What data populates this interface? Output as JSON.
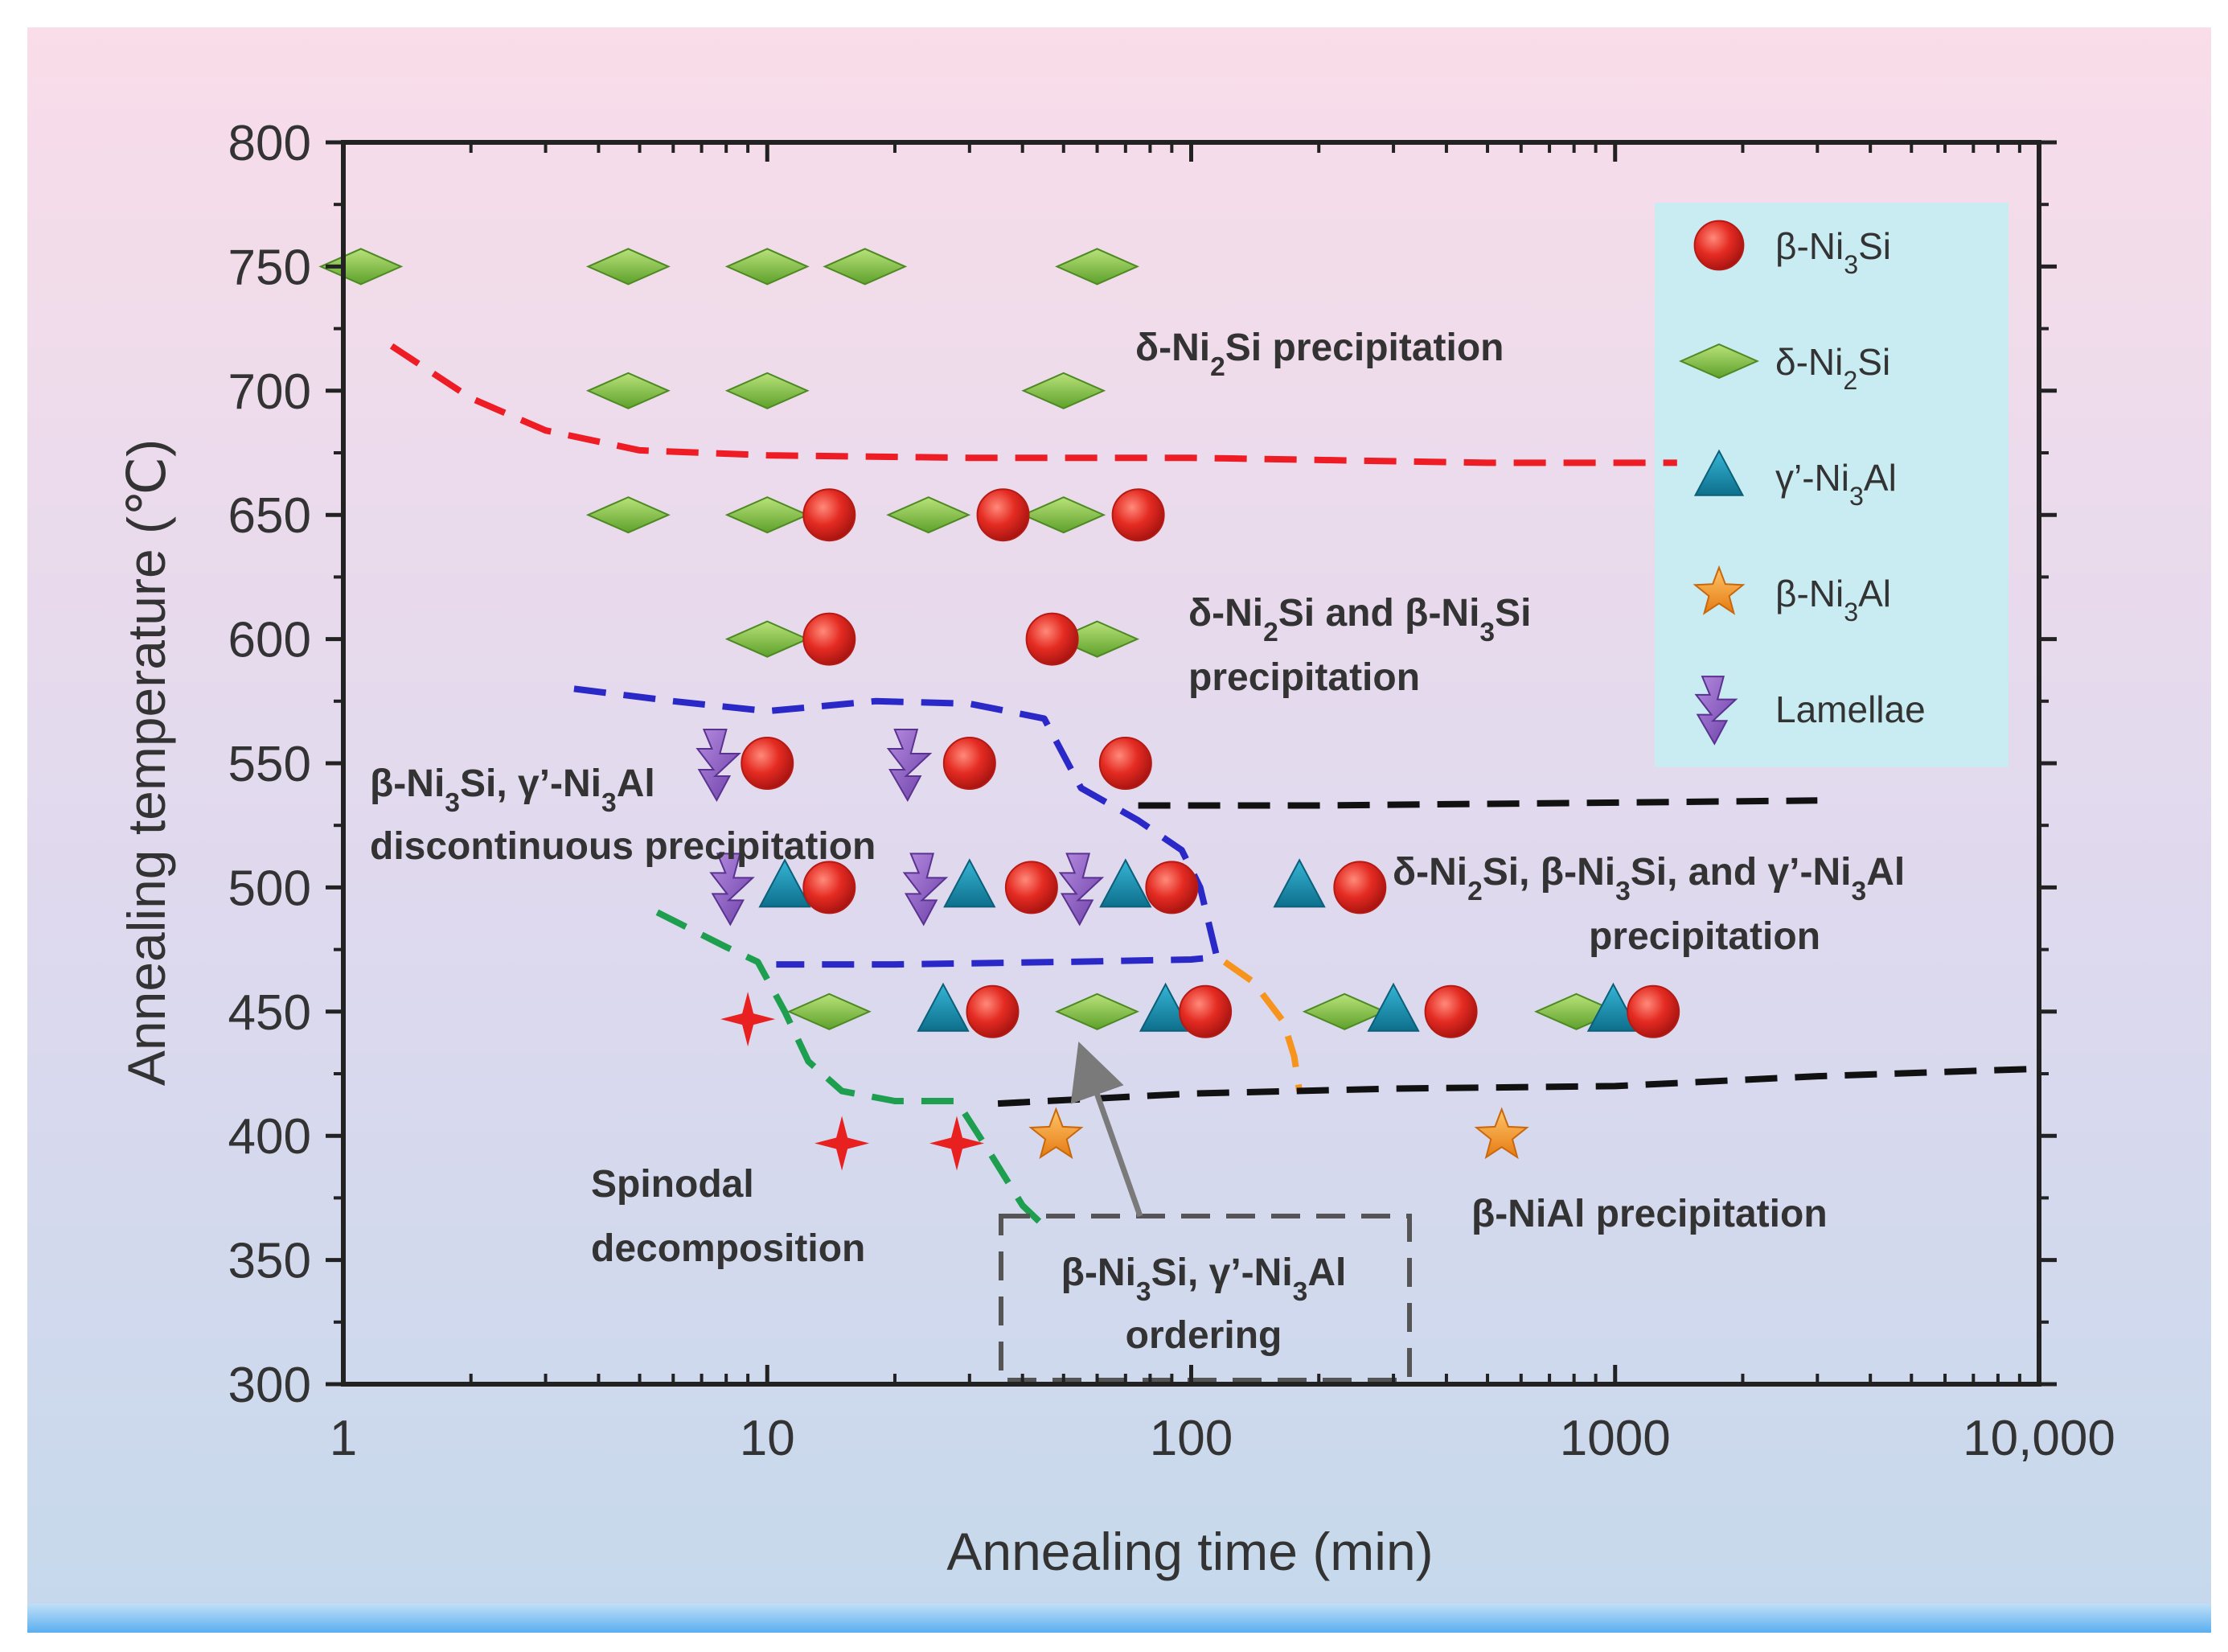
{
  "chart_data": {
    "type": "scatter",
    "title": "",
    "xlabel": "Annealing time (min)",
    "ylabel": "Annealing temperature (℃)",
    "xscale": "log",
    "xlim": [
      1,
      10000
    ],
    "ylim": [
      300,
      800
    ],
    "grid": false,
    "legend_position": "top-right",
    "x_ticks": [
      {
        "value": 1,
        "label": "1"
      },
      {
        "value": 10,
        "label": "10"
      },
      {
        "value": 100,
        "label": "100"
      },
      {
        "value": 1000,
        "label": "1000"
      },
      {
        "value": 10000,
        "label": "10,000"
      }
    ],
    "y_ticks": [
      {
        "value": 800,
        "label": "800"
      },
      {
        "value": 750,
        "label": "750"
      },
      {
        "value": 700,
        "label": "700"
      },
      {
        "value": 650,
        "label": "650"
      },
      {
        "value": 600,
        "label": "600"
      },
      {
        "value": 550,
        "label": "550"
      },
      {
        "value": 500,
        "label": "500"
      },
      {
        "value": 450,
        "label": "450"
      },
      {
        "value": 400,
        "label": "400"
      },
      {
        "value": 350,
        "label": "350"
      },
      {
        "value": 300,
        "label": "300"
      }
    ],
    "legend": [
      {
        "key": "circle",
        "label": "β-Ni₃Si"
      },
      {
        "key": "diamond",
        "label": "δ-Ni₂Si"
      },
      {
        "key": "triangle",
        "label": "γ’-Ni₃Al"
      },
      {
        "key": "star",
        "label": "β-Ni₃Al"
      },
      {
        "key": "lightning",
        "label": "Lamellae"
      }
    ],
    "series": [
      {
        "name": "δ-Ni₂Si",
        "marker": "diamond",
        "color": "#7cc242",
        "points": [
          [
            1.1,
            750
          ],
          [
            4.7,
            750
          ],
          [
            10,
            750
          ],
          [
            17,
            750
          ],
          [
            60,
            750
          ],
          [
            4.7,
            700
          ],
          [
            10,
            700
          ],
          [
            50,
            700
          ],
          [
            4.7,
            650
          ],
          [
            10,
            650
          ],
          [
            24,
            650
          ],
          [
            50,
            650
          ],
          [
            10,
            600
          ],
          [
            60,
            600
          ],
          [
            14,
            450
          ],
          [
            60,
            450
          ],
          [
            230,
            450
          ],
          [
            810,
            450
          ]
        ]
      },
      {
        "name": "β-Ni₃Si",
        "marker": "circle",
        "color": "#e02020",
        "points": [
          [
            14,
            650
          ],
          [
            36,
            650
          ],
          [
            75,
            650
          ],
          [
            14,
            600
          ],
          [
            47,
            600
          ],
          [
            10,
            550
          ],
          [
            30,
            550
          ],
          [
            70,
            550
          ],
          [
            14,
            500
          ],
          [
            42,
            500
          ],
          [
            90,
            500
          ],
          [
            250,
            500
          ],
          [
            34,
            450
          ],
          [
            108,
            450
          ],
          [
            410,
            450
          ],
          [
            1230,
            450
          ]
        ]
      },
      {
        "name": "γ’-Ni₃Al",
        "marker": "triangle",
        "color": "#1590b5",
        "points": [
          [
            11,
            500
          ],
          [
            30,
            500
          ],
          [
            70,
            500
          ],
          [
            180,
            500
          ],
          [
            26,
            450
          ],
          [
            87,
            450
          ],
          [
            300,
            450
          ],
          [
            990,
            450
          ]
        ]
      },
      {
        "name": "β-Ni₃Al",
        "marker": "star",
        "color": "#f59b2a",
        "points": [
          [
            48,
            400
          ],
          [
            540,
            400
          ]
        ]
      },
      {
        "name": "Lamellae",
        "marker": "lightning",
        "color": "#8e5cc4",
        "points": [
          [
            7.8,
            550
          ],
          [
            22,
            550
          ],
          [
            8.4,
            500
          ],
          [
            24,
            500
          ],
          [
            56,
            500
          ]
        ]
      },
      {
        "name": "Spinodal decomposition",
        "marker": "cross",
        "color": "#e82020",
        "points": [
          [
            9,
            447
          ],
          [
            15,
            397
          ],
          [
            28,
            397
          ]
        ]
      }
    ],
    "boundaries": [
      {
        "name": "red-dashed",
        "color": "#ee1c24",
        "points": [
          [
            1.3,
            718
          ],
          [
            2.0,
            697
          ],
          [
            3.0,
            684
          ],
          [
            5,
            676
          ],
          [
            10,
            674
          ],
          [
            30,
            673
          ],
          [
            100,
            673
          ],
          [
            500,
            671
          ],
          [
            1400,
            671
          ]
        ]
      },
      {
        "name": "blue-dashed",
        "color": "#2b28c8",
        "points": [
          [
            3.5,
            580
          ],
          [
            6,
            575
          ],
          [
            10,
            571
          ],
          [
            18,
            575
          ],
          [
            30,
            574
          ],
          [
            45,
            568
          ],
          [
            55,
            540
          ],
          [
            75,
            527
          ],
          [
            95,
            515
          ],
          [
            105,
            500
          ],
          [
            112,
            480
          ],
          [
            115,
            472
          ],
          [
            100,
            471
          ],
          [
            50,
            470
          ],
          [
            20,
            469
          ],
          [
            10.5,
            469
          ]
        ]
      },
      {
        "name": "green-dashed",
        "color": "#1e9e4f",
        "points": [
          [
            5.5,
            490
          ],
          [
            8,
            476
          ],
          [
            9.5,
            470
          ],
          [
            11,
            450
          ],
          [
            12.5,
            430
          ],
          [
            15,
            418
          ],
          [
            20,
            414
          ],
          [
            28,
            414
          ],
          [
            33,
            395
          ],
          [
            40,
            372
          ],
          [
            46,
            362
          ]
        ]
      },
      {
        "name": "orange-dashed",
        "color": "#f7941d",
        "points": [
          [
            120,
            470
          ],
          [
            140,
            462
          ],
          [
            165,
            446
          ],
          [
            175,
            432
          ],
          [
            180,
            418
          ]
        ]
      },
      {
        "name": "black-dashed-upper",
        "color": "#111111",
        "points": [
          [
            75,
            533
          ],
          [
            200,
            533
          ],
          [
            800,
            534
          ],
          [
            3000,
            535
          ]
        ]
      },
      {
        "name": "black-dashed-lower",
        "color": "#111111",
        "points": [
          [
            35,
            413
          ],
          [
            100,
            417
          ],
          [
            300,
            419
          ],
          [
            1000,
            420
          ],
          [
            3000,
            424
          ],
          [
            10000,
            427
          ]
        ]
      }
    ],
    "annotations": [
      {
        "id": "delta",
        "lines": [
          "δ-Ni₂Si precipitation"
        ]
      },
      {
        "id": "delta-beta",
        "lines": [
          "δ-Ni₂Si and β-Ni₃Si",
          "precipitation"
        ]
      },
      {
        "id": "discontinuous",
        "lines": [
          "β-Ni₃Si, γ’-Ni₃Al",
          "discontinuous precipitation"
        ]
      },
      {
        "id": "triple",
        "lines": [
          "δ-Ni₂Si,  β-Ni₃Si, and γ’-Ni₃Al",
          "precipitation"
        ]
      },
      {
        "id": "spinodal",
        "lines": [
          "Spinodal",
          "decomposition"
        ]
      },
      {
        "id": "ordering",
        "lines": [
          "β-Ni₃Si, γ’-Ni₃Al",
          "ordering"
        ]
      },
      {
        "id": "nial",
        "lines": [
          "β-NiAl precipitation"
        ]
      }
    ]
  }
}
